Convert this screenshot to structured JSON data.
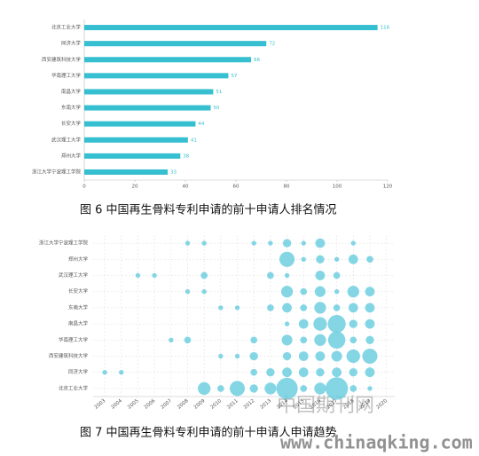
{
  "chart_data": [
    {
      "type": "bar",
      "orientation": "horizontal",
      "color": "#35bfd0",
      "categories": [
        "北京工业大学",
        "同济大学",
        "西安建筑科技大学",
        "华南理工大学",
        "南昌大学",
        "东南大学",
        "长安大学",
        "武汉理工大学",
        "郑州大学",
        "浙江大学宁波理工学院"
      ],
      "values": [
        116,
        72,
        66,
        57,
        51,
        50,
        44,
        41,
        38,
        33
      ],
      "xlim": [
        0,
        120
      ],
      "xticks": [
        0,
        20,
        40,
        60,
        80,
        100,
        120
      ]
    },
    {
      "type": "bubble",
      "color": "#6fcfe0",
      "grid": true,
      "categories": [
        "浙江大学宁波理工学院",
        "郑州大学",
        "武汉理工大学",
        "长安大学",
        "东南大学",
        "南昌大学",
        "华南理工大学",
        "西安建筑科技大学",
        "同济大学",
        "北京工业大学"
      ],
      "x": [
        2003,
        2004,
        2005,
        2006,
        2007,
        2008,
        2009,
        2010,
        2011,
        2012,
        2013,
        2014,
        2015,
        2016,
        2017,
        2018,
        2019,
        2020
      ],
      "values": [
        [
          null,
          null,
          null,
          null,
          null,
          1,
          1,
          null,
          null,
          1,
          1,
          3,
          1,
          4,
          null,
          1,
          null,
          null
        ],
        [
          null,
          null,
          null,
          null,
          null,
          null,
          null,
          null,
          null,
          null,
          null,
          10,
          1,
          3,
          1,
          4,
          2,
          null
        ],
        [
          null,
          null,
          1,
          1,
          null,
          null,
          2,
          null,
          null,
          null,
          2,
          1,
          null,
          4,
          2,
          null,
          null,
          null
        ],
        [
          null,
          null,
          null,
          null,
          null,
          1,
          1,
          null,
          null,
          null,
          null,
          6,
          2,
          5,
          1,
          6,
          4,
          null
        ],
        [
          null,
          null,
          null,
          null,
          null,
          null,
          null,
          1,
          1,
          null,
          2,
          4,
          2,
          6,
          2,
          4,
          4,
          null
        ],
        [
          null,
          null,
          null,
          null,
          null,
          null,
          null,
          null,
          null,
          null,
          null,
          1,
          4,
          8,
          14,
          3,
          4,
          null
        ],
        [
          null,
          null,
          null,
          null,
          1,
          2,
          null,
          null,
          null,
          2,
          null,
          5,
          2,
          6,
          13,
          2,
          3,
          null
        ],
        [
          null,
          null,
          null,
          null,
          null,
          null,
          null,
          1,
          1,
          3,
          null,
          3,
          4,
          4,
          5,
          8,
          10,
          null
        ],
        [
          1,
          1,
          null,
          null,
          null,
          null,
          null,
          null,
          null,
          2,
          3,
          4,
          4,
          3,
          4,
          3,
          4,
          null
        ],
        [
          null,
          null,
          null,
          null,
          null,
          null,
          7,
          2,
          10,
          3,
          6,
          20,
          2,
          6,
          22,
          2,
          1,
          null
        ]
      ],
      "xlim": [
        2002.3,
        2020.5
      ],
      "xticks": [
        2003,
        2004,
        2005,
        2006,
        2007,
        2008,
        2009,
        2010,
        2011,
        2012,
        2013,
        2014,
        2015,
        2016,
        2017,
        2018,
        2019,
        2020
      ]
    }
  ],
  "captions": [
    "图 6  中国再生骨料专利申请的前十申请人排名情况",
    "图 7 中国再生骨料专利申请的前十申请人申请趋势"
  ],
  "watermark": {
    "logo": "中国期刊网",
    "url": "www.chinaqking.com"
  }
}
